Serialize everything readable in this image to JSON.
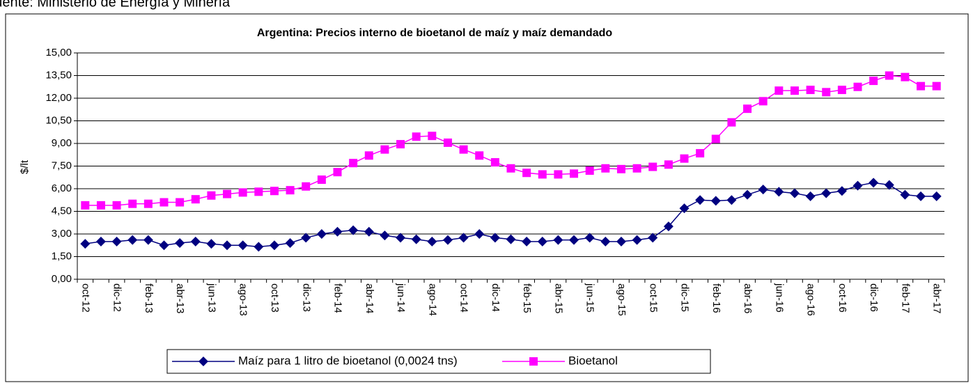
{
  "source": "Fuente: Ministerio de Energía y Minería",
  "chart_data": {
    "type": "line",
    "title": "Argentina: Precios interno de bioetanol de maíz y maíz demandado",
    "y_label": "$/lt",
    "categories": [
      "oct-12",
      null,
      "dic-12",
      null,
      "feb-13",
      null,
      "abr-13",
      null,
      "jun-13",
      null,
      "ago-13",
      null,
      "oct-13",
      null,
      "dic-13",
      null,
      "feb-14",
      null,
      "abr-14",
      null,
      "jun-14",
      null,
      "ago-14",
      null,
      "oct-14",
      null,
      "dic-14",
      null,
      "feb-15",
      null,
      "abr-15",
      null,
      "jun-15",
      null,
      "ago-15",
      null,
      "oct-15",
      null,
      "dic-15",
      null,
      "feb-16",
      null,
      "abr-16",
      null,
      "jun-16",
      null,
      "ago-16",
      null,
      "oct-16",
      null,
      "dic-16",
      null,
      "feb-17",
      null,
      "abr-17"
    ],
    "series": [
      {
        "name": "Maíz para 1 litro de bioetanol (0,0024 tns)",
        "color": "#000080",
        "marker": "diamond",
        "values": [
          2.35,
          2.5,
          2.5,
          2.6,
          2.6,
          2.25,
          2.4,
          2.5,
          2.35,
          2.25,
          2.25,
          2.15,
          2.25,
          2.4,
          2.75,
          3.0,
          3.15,
          3.25,
          3.15,
          2.9,
          2.75,
          2.65,
          2.5,
          2.6,
          2.75,
          3.0,
          2.75,
          2.65,
          2.5,
          2.5,
          2.6,
          2.6,
          2.75,
          2.5,
          2.5,
          2.6,
          2.75,
          3.5,
          4.7,
          5.25,
          5.2,
          5.25,
          5.6,
          5.95,
          5.8,
          5.7,
          5.5,
          5.7,
          5.85,
          6.2,
          6.4,
          6.25,
          5.6,
          5.5,
          5.5
        ]
      },
      {
        "name": "Bioetanol",
        "color": "#ff00ff",
        "marker": "square",
        "values": [
          4.9,
          4.9,
          4.9,
          5.0,
          5.0,
          5.1,
          5.1,
          5.3,
          5.55,
          5.65,
          5.75,
          5.8,
          5.85,
          5.9,
          6.15,
          6.6,
          7.1,
          7.7,
          8.2,
          8.6,
          8.95,
          9.45,
          9.5,
          9.05,
          8.6,
          8.2,
          7.75,
          7.35,
          7.05,
          6.95,
          6.95,
          7.0,
          7.2,
          7.35,
          7.3,
          7.35,
          7.45,
          7.6,
          8.0,
          8.35,
          9.3,
          10.4,
          11.3,
          11.8,
          12.5,
          12.5,
          12.55,
          12.4,
          12.55,
          12.75,
          13.15,
          13.5,
          13.4,
          12.8,
          12.8
        ]
      }
    ],
    "ylim": [
      0,
      15
    ],
    "yticks": [
      {
        "value": 0,
        "label": "0,00"
      },
      {
        "value": 1.5,
        "label": "1,50"
      },
      {
        "value": 3,
        "label": "3,00"
      },
      {
        "value": 4.5,
        "label": "4,50"
      },
      {
        "value": 6,
        "label": "6,00"
      },
      {
        "value": 7.5,
        "label": "7,50"
      },
      {
        "value": 9,
        "label": "9,00"
      },
      {
        "value": 10.5,
        "label": "10,50"
      },
      {
        "value": 12,
        "label": "12,00"
      },
      {
        "value": 13.5,
        "label": "13,50"
      },
      {
        "value": 15,
        "label": "15,00"
      }
    ],
    "grid": true,
    "legend": "bottom"
  }
}
